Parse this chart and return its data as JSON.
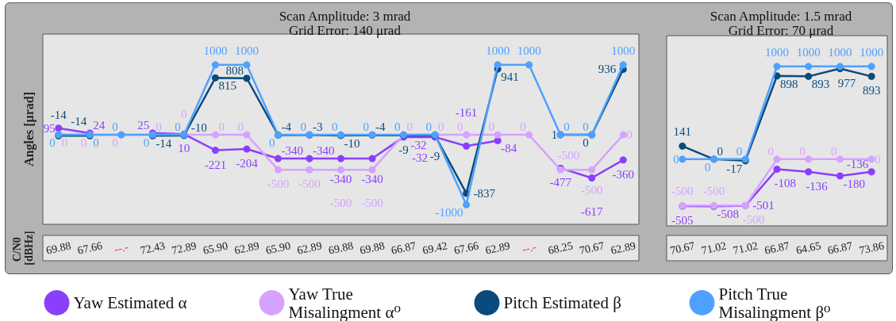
{
  "chart_data": [
    {
      "type": "line",
      "title": "Scan Amplitude: 3 mrad",
      "subtitle": "Grid Error: 140 μrad",
      "ylabel": "Angles [μrad]",
      "annotations": [
        "C/N0 [dBHz]"
      ],
      "categories": [
        "69.88",
        "67.66",
        "--.-",
        "72.43",
        "72.89",
        "65.90",
        "62.89",
        "65.90",
        "62.89",
        "69.88",
        "69.88",
        "66.87",
        "69.42",
        "67.66",
        "62.89",
        "--.-",
        "68.25",
        "70.67",
        "62.89"
      ],
      "series": [
        {
          "name": "Yaw Estimated α",
          "color": "#8a3ffc",
          "values": [
            95,
            24,
            null,
            25,
            10,
            -221,
            -204,
            -340,
            -340,
            -340,
            -340,
            -32,
            -32,
            -161,
            -84,
            null,
            -477,
            -617,
            -360
          ]
        },
        {
          "name": "Yaw True Misalingment α⁰",
          "color": "#d6a2ff",
          "values": [
            0,
            0,
            0,
            0,
            0,
            0,
            0,
            -500,
            -500,
            -500,
            -500,
            0,
            0,
            0,
            0,
            0,
            -500,
            -500,
            0
          ]
        },
        {
          "name": "Pitch Estimated β",
          "color": "#0b4a7c",
          "values": [
            -14,
            -14,
            null,
            -14,
            -10,
            815,
            808,
            -4,
            -3,
            -10,
            -4,
            -9,
            -9,
            -837,
            941,
            null,
            1,
            0,
            936
          ]
        },
        {
          "name": "Pitch True Misalingment β⁰",
          "color": "#4ea1ff",
          "values": [
            0,
            0,
            0,
            0,
            0,
            1000,
            1000,
            0,
            0,
            0,
            0,
            0,
            0,
            -1000,
            1000,
            1000,
            0,
            0,
            1000
          ]
        }
      ],
      "marker": "circle",
      "data_labels": true,
      "tick_labels": "x",
      "legend": "bottom"
    },
    {
      "type": "line",
      "title": "Scan Amplitude: 1.5 mrad",
      "subtitle": "Grid Error: 70 μrad",
      "categories": [
        "70.67",
        "71.02",
        "71.02",
        "66.87",
        "64.65",
        "66.87",
        "73.86"
      ],
      "series": [
        {
          "color": "#8a3ffc",
          "values": [
            -505,
            -508,
            -501,
            -108,
            -136,
            -180,
            -136
          ]
        },
        {
          "color": "#d6a2ff",
          "values": [
            -500,
            -500,
            -500,
            0,
            0,
            0,
            0
          ]
        },
        {
          "color": "#0b4a7c",
          "values": [
            141,
            0,
            -17,
            898,
            893,
            977,
            893
          ]
        },
        {
          "color": "#4ea1ff",
          "values": [
            0,
            0,
            0,
            1000,
            1000,
            1000,
            1000
          ]
        }
      ],
      "marker": "circle",
      "data_labels": true,
      "tick_labels": "x"
    }
  ]
}
